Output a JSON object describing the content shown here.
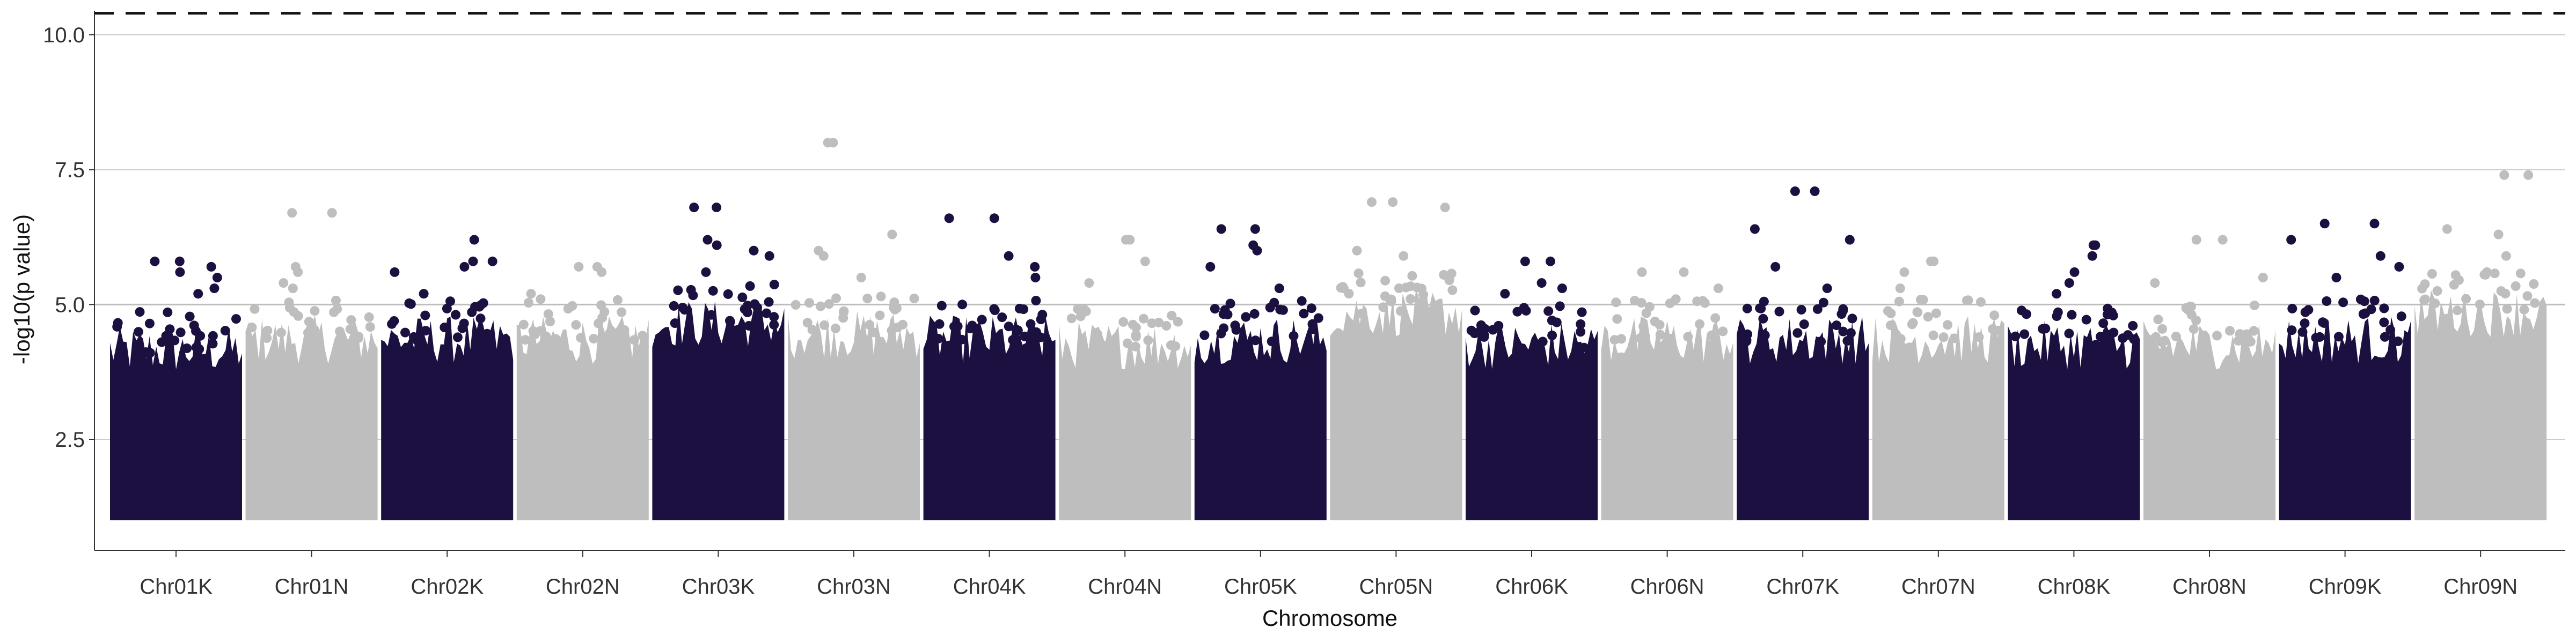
{
  "chart_data": {
    "type": "scatter",
    "subtype": "manhattan",
    "title": "",
    "xlabel": "Chromosome",
    "ylabel": "-log10(p value)",
    "ylim": [
      1.0,
      10.4
    ],
    "yticks": [
      "2.5",
      "5.0",
      "7.5",
      "10.0"
    ],
    "ytick_values": [
      2.5,
      5.0,
      7.5,
      10.0
    ],
    "grid": "horizontal-major",
    "reference_lines": [
      {
        "value": 5.0,
        "style": "solid"
      },
      {
        "value": 10.4,
        "style": "dashed"
      }
    ],
    "colors": {
      "K": "#1c1040",
      "N": "#bebebe",
      "threshold": "#111111",
      "grid": "#cccccc"
    },
    "categories": [
      "Chr01K",
      "Chr01N",
      "Chr02K",
      "Chr02N",
      "Chr03K",
      "Chr03N",
      "Chr04K",
      "Chr04N",
      "Chr05K",
      "Chr05N",
      "Chr06K",
      "Chr06N",
      "Chr07K",
      "Chr07N",
      "Chr08K",
      "Chr08N",
      "Chr09K",
      "Chr09N"
    ],
    "series": [
      {
        "values": [
          5.8,
          6.7,
          5.8,
          5.7,
          6.8,
          8.0,
          6.6,
          6.2,
          6.4,
          6.9,
          5.8,
          5.6,
          7.1,
          5.8,
          6.1,
          6.2,
          6.5,
          7.4
        ]
      },
      {
        "values": [
          4.3,
          4.5,
          4.5,
          4.5,
          4.8,
          4.6,
          4.5,
          4.4,
          4.5,
          5.0,
          4.4,
          4.5,
          4.5,
          4.5,
          4.4,
          4.4,
          4.5,
          5.0
        ]
      }
    ],
    "top_hits": [
      {
        "category": "Chr01K",
        "values": [
          5.5,
          5.7,
          5.8,
          5.6,
          5.3,
          5.2
        ]
      },
      {
        "category": "Chr01N",
        "values": [
          6.7,
          5.7,
          5.6,
          5.4,
          5.3
        ]
      },
      {
        "category": "Chr02K",
        "values": [
          5.8,
          6.2,
          5.6,
          5.7,
          5.2
        ]
      },
      {
        "category": "Chr02N",
        "values": [
          5.7,
          5.2,
          5.6,
          5.1
        ]
      },
      {
        "category": "Chr03K",
        "values": [
          6.8,
          6.2,
          6.0,
          5.9,
          6.1,
          5.6
        ]
      },
      {
        "category": "Chr03N",
        "values": [
          8.0,
          6.3,
          5.9,
          6.0,
          5.5
        ]
      },
      {
        "category": "Chr04K",
        "values": [
          6.6,
          5.9,
          5.7,
          5.5,
          5.0
        ]
      },
      {
        "category": "Chr04N",
        "values": [
          5.8,
          6.2,
          5.4
        ]
      },
      {
        "category": "Chr05K",
        "values": [
          6.4,
          6.1,
          6.0,
          5.7,
          5.3
        ]
      },
      {
        "category": "Chr05N",
        "values": [
          6.9,
          6.8,
          6.0,
          5.9
        ]
      },
      {
        "category": "Chr06K",
        "values": [
          5.8,
          5.4,
          5.3,
          5.2
        ]
      },
      {
        "category": "Chr06N",
        "values": [
          5.6,
          5.3,
          5.1
        ]
      },
      {
        "category": "Chr07K",
        "values": [
          7.1,
          6.4,
          6.2,
          5.7,
          5.3
        ]
      },
      {
        "category": "Chr07N",
        "values": [
          5.8,
          5.6,
          5.3
        ]
      },
      {
        "category": "Chr08K",
        "values": [
          6.1,
          5.9,
          5.6,
          5.4,
          5.2
        ]
      },
      {
        "category": "Chr08N",
        "values": [
          6.2,
          5.5,
          5.4
        ]
      },
      {
        "category": "Chr09K",
        "values": [
          6.5,
          6.2,
          5.9,
          5.7,
          5.5
        ]
      },
      {
        "category": "Chr09N",
        "values": [
          7.4,
          6.4,
          6.3,
          5.9,
          5.6
        ]
      }
    ]
  }
}
